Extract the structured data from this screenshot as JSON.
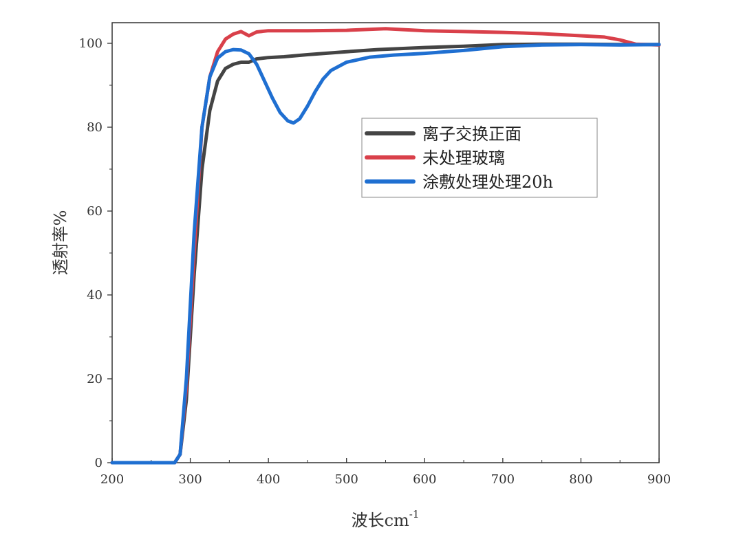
{
  "chart_data": {
    "type": "line",
    "title": "",
    "xlabel": "波长cm",
    "xlabel_sup": "-1",
    "ylabel": "透射率%",
    "xlim": [
      200,
      900
    ],
    "ylim": [
      0,
      105
    ],
    "x_ticks": [
      200,
      300,
      400,
      500,
      600,
      700,
      800,
      900
    ],
    "y_ticks": [
      0,
      20,
      40,
      60,
      80,
      100
    ],
    "legend_position": "center-right",
    "grid": false,
    "series": [
      {
        "name": "离子交换正面",
        "color": "#444444",
        "points": [
          [
            200,
            0
          ],
          [
            280,
            0
          ],
          [
            287,
            2
          ],
          [
            295,
            15
          ],
          [
            305,
            45
          ],
          [
            315,
            70
          ],
          [
            325,
            84
          ],
          [
            335,
            91
          ],
          [
            345,
            94
          ],
          [
            355,
            95
          ],
          [
            365,
            95.5
          ],
          [
            375,
            95.5
          ],
          [
            385,
            96.3
          ],
          [
            400,
            96.6
          ],
          [
            420,
            96.8
          ],
          [
            450,
            97.3
          ],
          [
            500,
            98
          ],
          [
            540,
            98.5
          ],
          [
            600,
            99
          ],
          [
            650,
            99.3
          ],
          [
            700,
            99.7
          ],
          [
            750,
            99.8
          ],
          [
            800,
            99.8
          ],
          [
            850,
            99.7
          ],
          [
            900,
            99.7
          ]
        ]
      },
      {
        "name": "未处理玻璃",
        "color": "#d9404a",
        "points": [
          [
            200,
            0
          ],
          [
            280,
            0
          ],
          [
            287,
            2
          ],
          [
            295,
            18
          ],
          [
            305,
            50
          ],
          [
            315,
            80
          ],
          [
            325,
            92
          ],
          [
            335,
            98
          ],
          [
            345,
            101
          ],
          [
            355,
            102.2
          ],
          [
            365,
            102.8
          ],
          [
            375,
            101.8
          ],
          [
            385,
            102.7
          ],
          [
            400,
            103
          ],
          [
            450,
            103
          ],
          [
            500,
            103.1
          ],
          [
            550,
            103.5
          ],
          [
            600,
            103
          ],
          [
            650,
            102.8
          ],
          [
            700,
            102.6
          ],
          [
            750,
            102.3
          ],
          [
            800,
            101.8
          ],
          [
            830,
            101.5
          ],
          [
            850,
            100.8
          ],
          [
            870,
            99.8
          ],
          [
            900,
            99.6
          ]
        ]
      },
      {
        "name": "涂敷处理处理20h",
        "color": "#1f6fd1",
        "points": [
          [
            200,
            0
          ],
          [
            280,
            0
          ],
          [
            287,
            2
          ],
          [
            295,
            20
          ],
          [
            305,
            55
          ],
          [
            315,
            80
          ],
          [
            325,
            92
          ],
          [
            335,
            96.5
          ],
          [
            345,
            98
          ],
          [
            355,
            98.5
          ],
          [
            365,
            98.4
          ],
          [
            375,
            97.5
          ],
          [
            385,
            95
          ],
          [
            395,
            91
          ],
          [
            405,
            87
          ],
          [
            415,
            83.5
          ],
          [
            425,
            81.5
          ],
          [
            432,
            81
          ],
          [
            440,
            82
          ],
          [
            450,
            85
          ],
          [
            460,
            88.5
          ],
          [
            470,
            91.5
          ],
          [
            480,
            93.5
          ],
          [
            500,
            95.5
          ],
          [
            530,
            96.7
          ],
          [
            560,
            97.2
          ],
          [
            600,
            97.6
          ],
          [
            650,
            98.3
          ],
          [
            700,
            99.2
          ],
          [
            750,
            99.6
          ],
          [
            800,
            99.7
          ],
          [
            850,
            99.6
          ],
          [
            900,
            99.7
          ]
        ]
      }
    ]
  }
}
